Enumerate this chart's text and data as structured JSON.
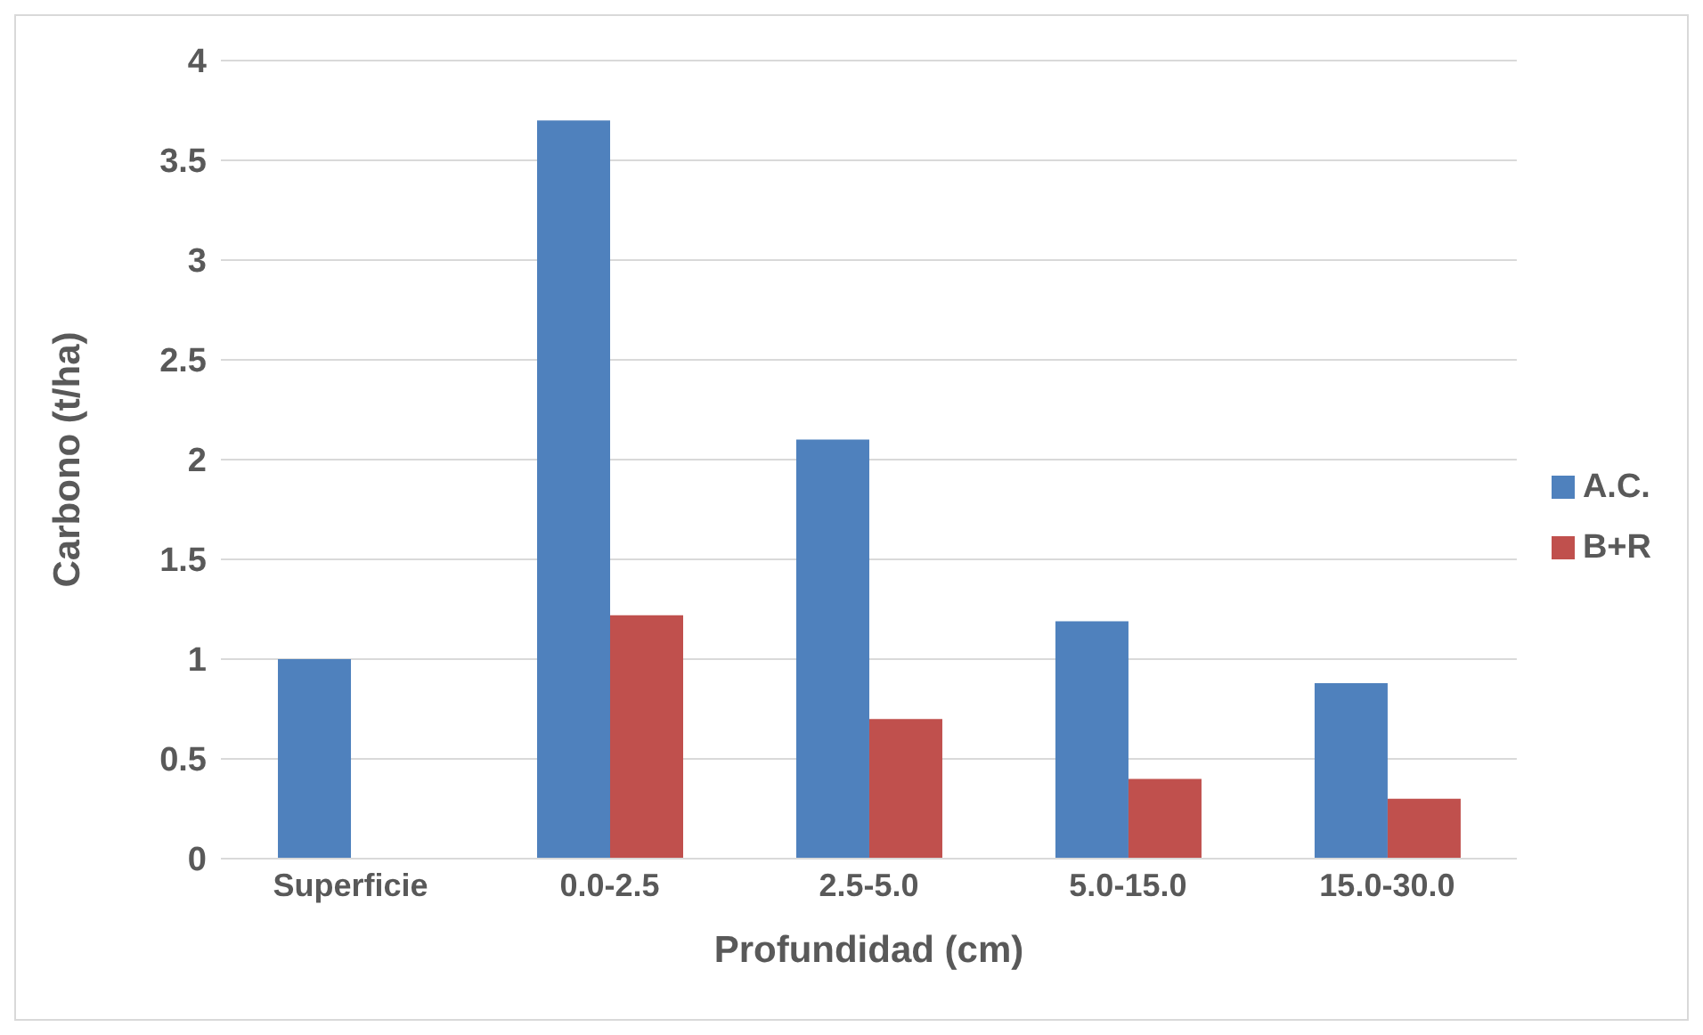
{
  "chart_data": {
    "type": "bar",
    "xlabel": "Profundidad (cm)",
    "ylabel": "Carbono (t/ha)",
    "categories": [
      "Superficie",
      "0.0-2.5",
      "2.5-5.0",
      "5.0-15.0",
      "15.0-30.0"
    ],
    "series": [
      {
        "name": "A.C.",
        "color": "#4f81bd",
        "values": [
          1.0,
          3.7,
          2.1,
          1.19,
          0.88
        ]
      },
      {
        "name": "B+R",
        "color": "#c0504d",
        "values": [
          null,
          1.22,
          0.7,
          0.4,
          0.3
        ]
      }
    ],
    "ylim": [
      0,
      4
    ],
    "yticks": [
      0,
      0.5,
      1,
      1.5,
      2,
      2.5,
      3,
      3.5,
      4
    ],
    "grid": "y",
    "legend": "right"
  }
}
